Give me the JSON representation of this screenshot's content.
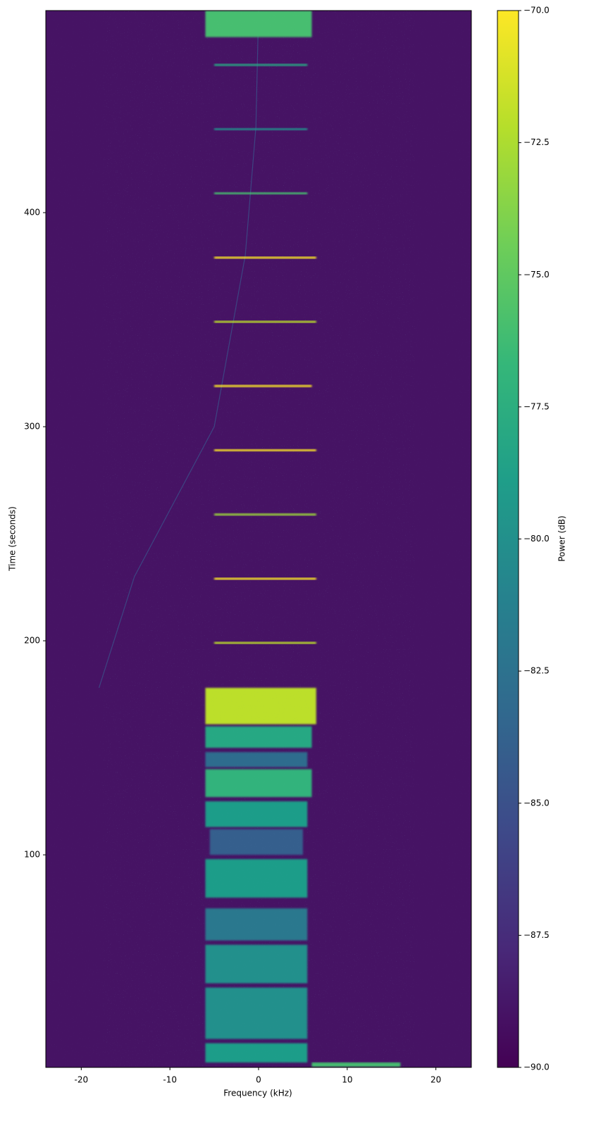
{
  "chart_data": {
    "type": "spectrogram",
    "xlabel": "Frequency (kHz)",
    "ylabel": "Time (seconds)",
    "colorbar_label": "Power (dB)",
    "xlim": [
      -24,
      24
    ],
    "ylim": [
      0.7,
      494.4
    ],
    "xticks": [
      -20,
      -10,
      0,
      10,
      20
    ],
    "yticks": [
      100,
      200,
      300,
      400
    ],
    "clim": [
      -90,
      -70
    ],
    "cticks": [
      {
        "value": -90,
        "label": "−90.0"
      },
      {
        "value": -87.5,
        "label": "−87.5"
      },
      {
        "value": -85,
        "label": "−85.0"
      },
      {
        "value": -82.5,
        "label": "−82.5"
      },
      {
        "value": -80,
        "label": "−80.0"
      },
      {
        "value": -77.5,
        "label": "−77.5"
      },
      {
        "value": -75,
        "label": "−75.0"
      },
      {
        "value": -72.5,
        "label": "−72.5"
      },
      {
        "value": -70,
        "label": "−70.0"
      }
    ],
    "colormap": [
      "#440154",
      "#482878",
      "#3e4989",
      "#31688e",
      "#26828e",
      "#1f9e89",
      "#35b779",
      "#6ece58",
      "#b5de2b",
      "#fde725"
    ],
    "noise_floor": -89,
    "blocks": {
      "t0": [
        1,
        3,
        14,
        40,
        60,
        80,
        100,
        113,
        127,
        141,
        150,
        161,
        198.5,
        228.5,
        258.5,
        288.5,
        318.5,
        348.5,
        378.5,
        408.5,
        438.5,
        468.5,
        482
      ],
      "t1": [
        3,
        12,
        38,
        58,
        75,
        98,
        112,
        125,
        140,
        148,
        160,
        178,
        199.5,
        229.5,
        259.5,
        289.5,
        319.5,
        349.5,
        379.5,
        409.5,
        439.5,
        469.5,
        494.4
      ],
      "f0": [
        6,
        -6,
        -6,
        -6,
        -6,
        -6,
        -5.5,
        -6,
        -6,
        -6,
        -6,
        -6,
        -5,
        -5,
        -5,
        -5,
        -5,
        -5,
        -5,
        -5,
        -5,
        -5,
        -6
      ],
      "f1": [
        16,
        5.5,
        5.5,
        5.5,
        5.5,
        5.5,
        5,
        5.5,
        6,
        5.5,
        6,
        6.5,
        6.5,
        6.5,
        6.5,
        6.5,
        6,
        6.5,
        6.5,
        5.5,
        5.5,
        5.5,
        6
      ],
      "power": [
        -76,
        -79,
        -80,
        -80,
        -82,
        -79,
        -84,
        -79,
        -77,
        -83,
        -78,
        -72,
        -72,
        -70,
        -73,
        -70,
        -70,
        -72,
        -70,
        -76,
        -80,
        -78,
        -76
      ]
    },
    "drift": {
      "t": [
        178,
        230,
        300,
        380,
        440,
        494.4
      ],
      "f": [
        -18,
        -14,
        -5,
        -1.5,
        -0.3,
        0
      ],
      "power": -85
    }
  }
}
